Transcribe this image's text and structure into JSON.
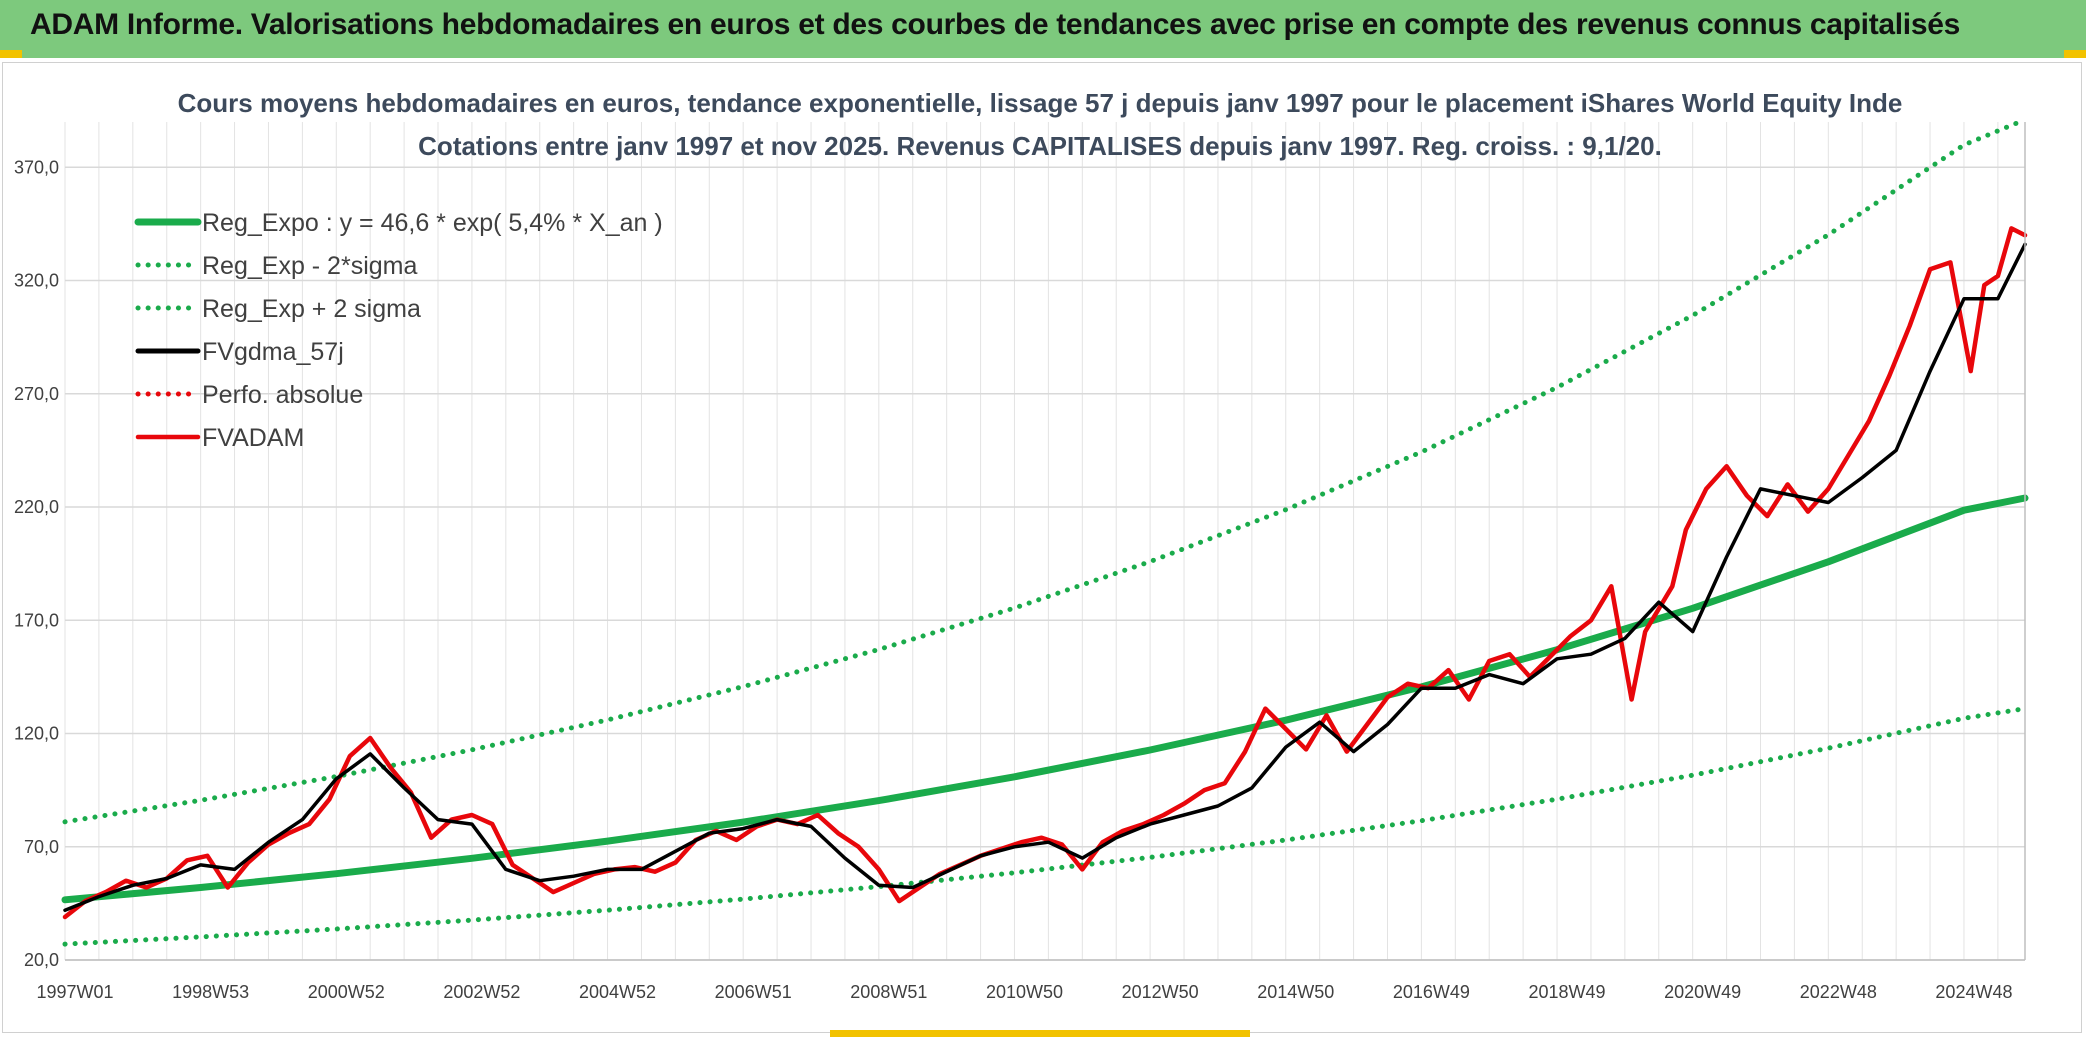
{
  "header": {
    "title": "ADAM Informe. Valorisations hebdomadaires en euros et des courbes de tendances avec prise en compte des revenus connus capitalisés"
  },
  "colors": {
    "header_bg": "#7dc97d",
    "accent": "#f2c200",
    "reg_green": "#1aab4b",
    "fv_black": "#000000",
    "fvadam_red": "#e8070b"
  },
  "chart_data": {
    "type": "line",
    "title": "Cours moyens hebdomadaires en euros, tendance exponentielle, lissage 57 j depuis janv 1997 pour le placement iShares World Equity Inde",
    "subtitle": "Cotations entre janv 1997 et nov 2025. Revenus CAPITALISES depuis janv 1997. Reg. croiss. : 9,1/20.",
    "xlabel": "",
    "ylabel": "",
    "ylim": [
      20,
      390
    ],
    "xlim": [
      0,
      28.9
    ],
    "y_ticks": [
      "20,0",
      "70,0",
      "120,0",
      "170,0",
      "220,0",
      "270,0",
      "320,0",
      "370,0"
    ],
    "y_tick_values": [
      20,
      70,
      120,
      170,
      220,
      270,
      320,
      370
    ],
    "x_ticks": [
      "1997W01",
      "1998W53",
      "2000W52",
      "2002W52",
      "2004W52",
      "2006W51",
      "2008W51",
      "2010W50",
      "2012W50",
      "2014W50",
      "2016W49",
      "2018W49",
      "2020W49",
      "2022W48",
      "2024W48"
    ],
    "x_tick_values": [
      0,
      2,
      4,
      6,
      8,
      10,
      12,
      14,
      16,
      18,
      20,
      22,
      24,
      26,
      28
    ],
    "grid": true,
    "legend_position": "top-left",
    "series": [
      {
        "name": "Reg_Expo : y = 46,6 * exp( 5,4% *  X_an )",
        "style": "solid-thick",
        "color": "#1aab4b",
        "x": [
          0,
          2,
          4,
          6,
          8,
          10,
          12,
          14,
          16,
          18,
          20,
          22,
          24,
          26,
          28,
          28.9
        ],
        "values": [
          46.6,
          52.0,
          58.1,
          64.9,
          72.5,
          80.9,
          90.4,
          100.9,
          112.7,
          125.9,
          140.6,
          157.0,
          175.3,
          195.8,
          218.6,
          224.0
        ]
      },
      {
        "name": "Reg_Exp - 2*sigma",
        "style": "dotted",
        "color": "#1aab4b",
        "x": [
          0,
          2,
          4,
          6,
          8,
          10,
          12,
          14,
          16,
          18,
          20,
          22,
          24,
          26,
          28,
          28.9
        ],
        "values": [
          27,
          30.2,
          33.7,
          37.6,
          42.0,
          46.9,
          52.4,
          58.5,
          65.3,
          73.0,
          81.5,
          91.0,
          101.6,
          113.5,
          126.7,
          131.0
        ]
      },
      {
        "name": "Reg_Exp + 2 sigma",
        "style": "dotted",
        "color": "#1aab4b",
        "x": [
          0,
          2,
          4,
          6,
          8,
          10,
          12,
          14,
          16,
          18,
          20,
          22,
          24,
          26,
          28,
          28.9
        ],
        "values": [
          81,
          90.5,
          101.0,
          112.8,
          126.0,
          140.7,
          157.1,
          175.4,
          195.9,
          218.8,
          244.3,
          272.8,
          304.6,
          340.2,
          379.9,
          391.0
        ]
      },
      {
        "name": "FVgdma_57j",
        "style": "solid",
        "color": "#000000",
        "x": [
          0,
          0.5,
          1.0,
          1.5,
          2.0,
          2.5,
          3.0,
          3.5,
          4.0,
          4.5,
          5.0,
          5.5,
          6.0,
          6.5,
          7.0,
          7.5,
          8.0,
          8.5,
          9.0,
          9.5,
          10.0,
          10.5,
          11.0,
          11.5,
          12.0,
          12.5,
          13.0,
          13.5,
          14.0,
          14.5,
          15.0,
          15.5,
          16.0,
          16.5,
          17.0,
          17.5,
          18.0,
          18.5,
          19.0,
          19.5,
          20.0,
          20.5,
          21.0,
          21.5,
          22.0,
          22.5,
          23.0,
          23.5,
          24.0,
          24.5,
          25.0,
          25.5,
          26.0,
          26.5,
          27.0,
          27.5,
          28.0,
          28.5,
          28.9
        ],
        "values": [
          42,
          48,
          53,
          56,
          62,
          60,
          72,
          82,
          100,
          111,
          96,
          82,
          80,
          60,
          55,
          57,
          60,
          60,
          68,
          76,
          78,
          82,
          79,
          65,
          53,
          52,
          59,
          66,
          70,
          72,
          65,
          74,
          80,
          84,
          88,
          96,
          114,
          125,
          112,
          124,
          140,
          140,
          146,
          142,
          153,
          155,
          162,
          178,
          165,
          198,
          228,
          225,
          222,
          233,
          245,
          280,
          312,
          312,
          336
        ]
      },
      {
        "name": "Perfo. absolue",
        "style": "dotted",
        "color": "#e8070b",
        "x": [],
        "values": []
      },
      {
        "name": "FVADAM",
        "style": "solid-thick",
        "color": "#e8070b",
        "x": [
          0,
          0.3,
          0.6,
          0.9,
          1.2,
          1.5,
          1.8,
          2.1,
          2.4,
          2.7,
          3.0,
          3.3,
          3.6,
          3.9,
          4.2,
          4.5,
          4.8,
          5.1,
          5.4,
          5.7,
          6.0,
          6.3,
          6.6,
          6.9,
          7.2,
          7.5,
          7.8,
          8.1,
          8.4,
          8.7,
          9.0,
          9.3,
          9.6,
          9.9,
          10.2,
          10.5,
          10.8,
          11.1,
          11.4,
          11.7,
          12.0,
          12.3,
          12.6,
          12.9,
          13.2,
          13.5,
          13.8,
          14.1,
          14.4,
          14.7,
          15.0,
          15.3,
          15.6,
          15.9,
          16.2,
          16.5,
          16.8,
          17.1,
          17.4,
          17.7,
          18.0,
          18.3,
          18.6,
          18.9,
          19.2,
          19.5,
          19.8,
          20.1,
          20.4,
          20.7,
          21.0,
          21.3,
          21.6,
          21.9,
          22.2,
          22.5,
          22.8,
          23.1,
          23.3,
          23.5,
          23.7,
          23.9,
          24.2,
          24.5,
          24.8,
          25.1,
          25.4,
          25.7,
          26.0,
          26.3,
          26.6,
          26.9,
          27.2,
          27.5,
          27.8,
          28.1,
          28.3,
          28.5,
          28.7,
          28.9
        ],
        "values": [
          39,
          46,
          50,
          55,
          52,
          56,
          64,
          66,
          52,
          63,
          71,
          76,
          80,
          91,
          110,
          118,
          105,
          94,
          74,
          82,
          84,
          80,
          62,
          56,
          50,
          54,
          58,
          60,
          61,
          59,
          63,
          73,
          77,
          73,
          79,
          82,
          80,
          84,
          76,
          70,
          60,
          46,
          52,
          58,
          62,
          66,
          69,
          72,
          74,
          71,
          60,
          72,
          77,
          80,
          84,
          89,
          95,
          98,
          112,
          131,
          122,
          113,
          128,
          112,
          124,
          136,
          142,
          140,
          148,
          135,
          152,
          155,
          145,
          154,
          163,
          170,
          185,
          135,
          165,
          175,
          185,
          210,
          228,
          238,
          225,
          216,
          230,
          218,
          228,
          243,
          258,
          278,
          300,
          325,
          328,
          280,
          318,
          322,
          343,
          340
        ]
      }
    ]
  }
}
